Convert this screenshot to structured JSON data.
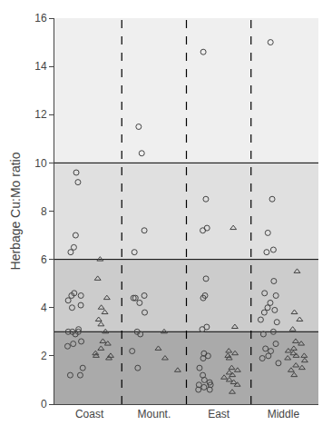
{
  "chart_data": {
    "type": "strip",
    "ylabel": "Herbage Cu:Mo ratio",
    "categories": [
      "Coast",
      "Mount.",
      "East",
      "Middle"
    ],
    "ylim": [
      0,
      16
    ],
    "yticks": [
      0,
      2,
      4,
      6,
      8,
      10,
      12,
      14,
      16
    ],
    "grid": false,
    "thresholds": [
      3.0,
      6.0,
      10.0
    ],
    "band_colors": [
      "#aaaaaa",
      "#cccccc",
      "#e0e0e0",
      "#efefef"
    ],
    "series": [
      {
        "marker": "circle",
        "color": "#444444",
        "values": [
          [
            7.0,
            9.2,
            9.6,
            6.3,
            6.5,
            4.5,
            4.6,
            4.1,
            4.5,
            4.3,
            4.0,
            3.1,
            3.0,
            3.0,
            3.0,
            2.9,
            2.6,
            2.5,
            2.4,
            1.5,
            1.2,
            1.2
          ],
          [
            7.2,
            6.3,
            4.5,
            4.4,
            4.4,
            4.2,
            3.8,
            3.0,
            2.9,
            2.2,
            1.5,
            10.4,
            11.5
          ],
          [
            14.6,
            8.5,
            7.3,
            7.2,
            5.2,
            4.5,
            4.4,
            3.2,
            3.1,
            2.1,
            2.0,
            1.9,
            1.5,
            1.2,
            1.0,
            0.9,
            0.8,
            0.8,
            0.7,
            0.6,
            0.6
          ],
          [
            15.0,
            8.5,
            7.1,
            6.4,
            6.3,
            5.1,
            4.6,
            4.5,
            4.2,
            4.0,
            3.9,
            3.8,
            3.5,
            3.4,
            3.0,
            2.9,
            2.5,
            2.3,
            2.2,
            2.0,
            1.9,
            1.7
          ]
        ]
      },
      {
        "marker": "triangle-up",
        "color": "#444444",
        "values": [
          [
            6.0,
            5.2,
            4.4,
            4.0,
            3.8,
            3.5,
            3.3,
            3.0,
            2.6,
            2.5,
            2.3,
            2.1,
            2.0,
            2.0,
            1.9
          ],
          [
            3.0,
            2.3,
            1.9,
            1.4
          ],
          [
            7.3,
            3.2,
            2.2,
            2.1,
            2.0,
            1.9,
            1.5,
            1.4,
            1.3,
            1.2,
            1.1,
            1.0,
            0.9,
            0.8,
            0.5
          ],
          [
            5.5,
            3.8,
            3.5,
            3.1,
            2.6,
            2.5,
            2.3,
            2.2,
            2.1,
            2.0,
            2.0,
            1.9,
            1.8,
            1.6,
            1.5,
            1.4,
            1.2
          ]
        ]
      }
    ]
  }
}
